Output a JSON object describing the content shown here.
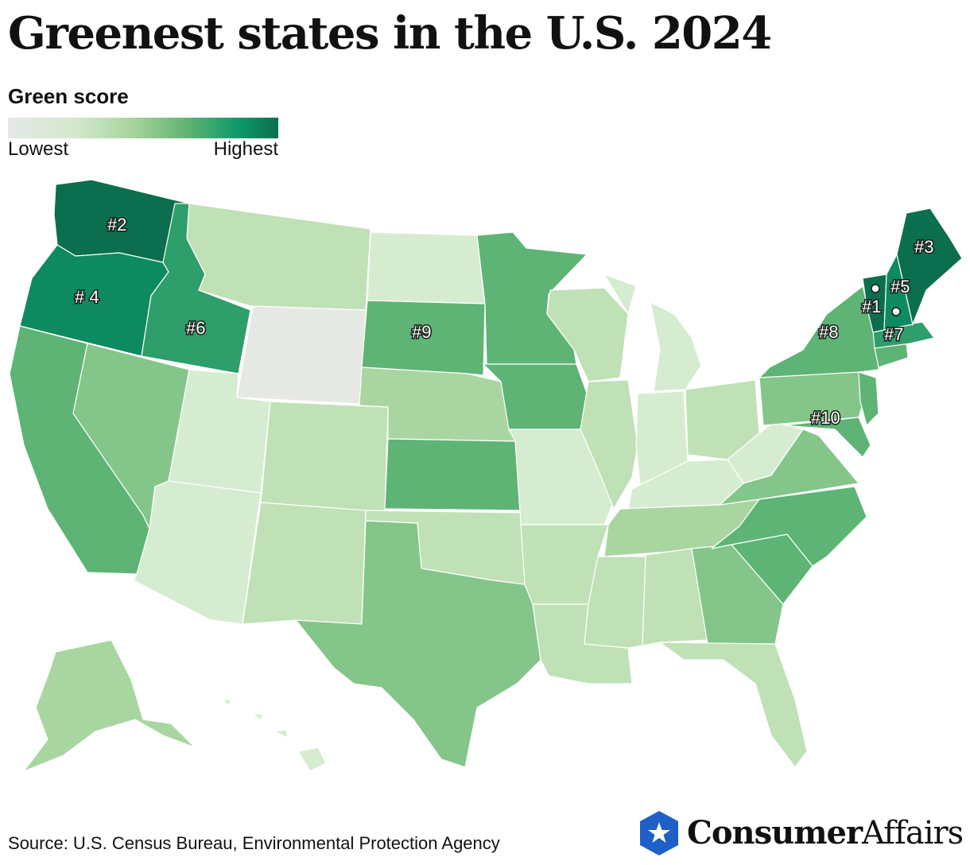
{
  "title": "Greenest states in the U.S. 2024",
  "legend": {
    "title": "Green score",
    "low": "Lowest",
    "high": "Highest"
  },
  "ranks": {
    "vt": "#1",
    "wa": "#2",
    "me": "#3",
    "or": "# 4",
    "nh": "#5",
    "id": "#6",
    "ma": "#7",
    "ny": "#8",
    "sd": "#9",
    "md": "#10"
  },
  "colors": {
    "darkest": "#0b6e4e",
    "dark": "#0e8a60",
    "mid_dark": "#2e9e6a",
    "mid": "#5db475",
    "mid_light": "#84c58a",
    "light": "#a9d6a0",
    "lighter": "#c0e0b6",
    "lightest": "#d6ecd0",
    "gray": "#e6e8e4"
  },
  "source": "Source: U.S. Census Bureau, Environmental Protection Agency",
  "brand": {
    "bold": "Consumer",
    "regular": "Affairs"
  }
}
